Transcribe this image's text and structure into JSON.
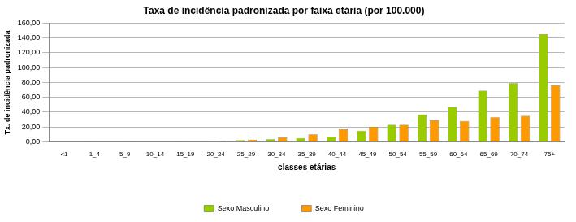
{
  "chart_data": {
    "type": "bar",
    "title": "Taxa de incidência padronizada por faixa etária (por 100.000)",
    "x_label": "classes etárias",
    "y_label": "Tx. de incidência padronizada",
    "categories": [
      "<1",
      "1_4",
      "5_9",
      "10_14",
      "15_19",
      "20_24",
      "25_29",
      "30_34",
      "35_39",
      "40_44",
      "45_49",
      "50_54",
      "55_59",
      "60_64",
      "65_69",
      "70_74",
      "75+"
    ],
    "series": [
      {
        "name": "Sexo Masculino",
        "color": "#99cc00",
        "values": [
          0.2,
          0.3,
          0.2,
          0.2,
          0.3,
          0.8,
          2,
          3.5,
          5,
          7,
          15,
          23,
          37,
          47,
          69,
          79,
          145
        ]
      },
      {
        "name": "Sexo Feminino",
        "color": "#ff9900",
        "values": [
          0.1,
          0.2,
          0.3,
          0.2,
          0.5,
          1,
          3,
          6,
          10,
          17,
          20,
          23,
          29,
          28,
          33,
          35,
          76
        ]
      }
    ],
    "ylim": [
      0,
      160
    ],
    "yticks": [
      {
        "value": 0,
        "label": "0,00"
      },
      {
        "value": 20,
        "label": "20,00"
      },
      {
        "value": 40,
        "label": "40,00"
      },
      {
        "value": 60,
        "label": "60,00"
      },
      {
        "value": 80,
        "label": "80,00"
      },
      {
        "value": 100,
        "label": "100,00"
      },
      {
        "value": 120,
        "label": "120,00"
      },
      {
        "value": 140,
        "label": "140,00"
      },
      {
        "value": 160,
        "label": "160,00"
      }
    ],
    "grid": true,
    "legend": "bottom"
  }
}
